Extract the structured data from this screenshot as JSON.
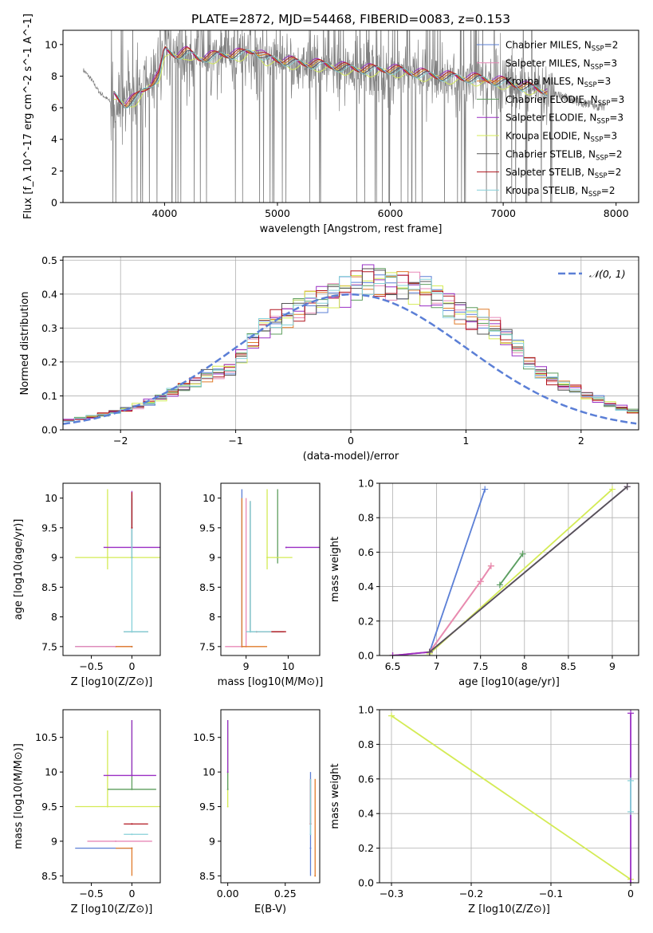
{
  "figure": {
    "title": "PLATE=2872, MJD=54468, FIBERID=0083, z=0.153"
  },
  "series_colors": {
    "Chabrier MILES": "#5b7fd6",
    "Salpeter MILES": "#e889b7",
    "Kroupa MILES": "#e07b2a",
    "Chabrier ELODIE": "#5e9e5e",
    "Salpeter ELODIE": "#9a2fc4",
    "Kroupa ELODIE": "#d4eb55",
    "Chabrier STELIB": "#555555",
    "Salpeter STELIB": "#b0141e",
    "Kroupa STELIB": "#86d0d8",
    "data": "#808080",
    "gaussian": "#5b7fd6"
  },
  "chart_data": [
    {
      "id": "spectrum",
      "type": "line",
      "title": "PLATE=2872, MJD=54468, FIBERID=0083, z=0.153",
      "xlabel": "wavelength [Angstrom, rest frame]",
      "ylabel": "Flux [f_λ 10^-17 erg cm^-2 s^-1 A^-1]",
      "xlim": [
        3100,
        8200
      ],
      "ylim": [
        0,
        10.9
      ],
      "x_ticks": [
        4000,
        5000,
        6000,
        7000,
        8000
      ],
      "y_ticks": [
        0,
        2,
        4,
        6,
        8,
        10
      ],
      "legend_position": "top-right",
      "legend": [
        {
          "label": "Chabrier MILES, N",
          "sub": "SSP",
          "suffix": "=2"
        },
        {
          "label": "Salpeter MILES, N",
          "sub": "SSP",
          "suffix": "=3"
        },
        {
          "label": "Kroupa MILES, N",
          "sub": "SSP",
          "suffix": "=3"
        },
        {
          "label": "Chabrier ELODIE, N",
          "sub": "SSP",
          "suffix": "=3"
        },
        {
          "label": "Salpeter ELODIE, N",
          "sub": "SSP",
          "suffix": "=3"
        },
        {
          "label": "Kroupa ELODIE, N",
          "sub": "SSP",
          "suffix": "=3"
        },
        {
          "label": "Chabrier STELIB, N",
          "sub": "SSP",
          "suffix": "=2"
        },
        {
          "label": "Salpeter STELIB, N",
          "sub": "SSP",
          "suffix": "=2"
        },
        {
          "label": "Kroupa STELIB, N",
          "sub": "SSP",
          "suffix": "=2"
        }
      ],
      "model_continuum": {
        "x": [
          3550,
          3650,
          3750,
          3850,
          3950,
          4000,
          4100,
          4200,
          4300,
          4500,
          4700,
          4800,
          4900,
          5000,
          5200,
          5400,
          5600,
          5800,
          6000,
          6200,
          6400,
          6600,
          6800,
          7000,
          7200,
          7400
        ],
        "y": [
          6.8,
          6.2,
          6.6,
          7.3,
          8.0,
          9.6,
          9.3,
          9.5,
          9.1,
          9.3,
          9.4,
          9.6,
          9.1,
          9.0,
          8.8,
          8.7,
          8.5,
          8.4,
          8.4,
          8.2,
          8.0,
          7.9,
          7.8,
          7.6,
          7.3,
          7.0
        ]
      },
      "data_spectrum": {
        "x": [
          3280,
          3350,
          3420,
          3500,
          3560,
          3620,
          3700,
          3800,
          3900,
          4000,
          4200,
          4500,
          4800,
          5000,
          5300,
          5600,
          5900,
          6200,
          6500,
          6800,
          7100,
          7400,
          7700,
          7900
        ],
        "y": [
          8.4,
          7.8,
          7.0,
          6.5,
          6.0,
          6.3,
          6.6,
          7.2,
          7.9,
          9.5,
          9.3,
          9.2,
          9.5,
          9.0,
          8.7,
          8.5,
          8.3,
          8.1,
          7.9,
          7.7,
          7.5,
          7.0,
          6.3,
          6.0
        ]
      }
    },
    {
      "id": "residuals",
      "type": "line",
      "xlabel": "(data-model)/error",
      "ylabel": "Normed distribution",
      "xlim": [
        -2.5,
        2.5
      ],
      "ylim": [
        0,
        0.51
      ],
      "x_ticks": [
        -2,
        -1,
        0,
        1,
        2
      ],
      "y_ticks": [
        0.0,
        0.1,
        0.2,
        0.3,
        0.4,
        0.5
      ],
      "grid": true,
      "legend_position": "top-right",
      "legend": [
        {
          "label": "𝒩(0, 1)"
        }
      ],
      "bin_width": 0.1,
      "hist_base": [
        0.018,
        0.02,
        0.022,
        0.028,
        0.033,
        0.038,
        0.045,
        0.052,
        0.06,
        0.07,
        0.082,
        0.095,
        0.11,
        0.125,
        0.14,
        0.16,
        0.17,
        0.18,
        0.22,
        0.26,
        0.3,
        0.32,
        0.34,
        0.36,
        0.38,
        0.39,
        0.4,
        0.41,
        0.43,
        0.45,
        0.44,
        0.43,
        0.43,
        0.42,
        0.41,
        0.39,
        0.37,
        0.35,
        0.33,
        0.32,
        0.3,
        0.27,
        0.24,
        0.2,
        0.17,
        0.15,
        0.13,
        0.12,
        0.1,
        0.09,
        0.075,
        0.065,
        0.055,
        0.045,
        0.035,
        0.028,
        0.022
      ]
    },
    {
      "id": "age-vs-Z",
      "type": "scatter",
      "xlabel": "Z [log10(Z/Z⊙)]",
      "ylabel": "age [log10(age/yr)]",
      "xlim": [
        -0.85,
        0.35
      ],
      "ylim": [
        7.35,
        10.25
      ],
      "x_ticks": [
        -0.5,
        0.0
      ],
      "y_ticks": [
        7.5,
        8.0,
        8.5,
        9.0,
        9.5,
        10.0
      ],
      "points": [
        {
          "s": "Chabrier MILES",
          "x": 0.0,
          "y": 7.5,
          "xe": [
            0.7,
            0.0
          ],
          "ye": [
            0,
            0
          ]
        },
        {
          "s": "Salpeter MILES",
          "x": -0.2,
          "y": 7.5,
          "xe": [
            0.5,
            0.2
          ],
          "ye": [
            0,
            0
          ]
        },
        {
          "s": "Kroupa MILES",
          "x": 0.0,
          "y": 7.5,
          "xe": [
            0.2,
            0.0
          ],
          "ye": [
            0,
            0
          ]
        },
        {
          "s": "Kroupa ELODIE",
          "x": -0.3,
          "y": 9.0,
          "xe": [
            0.4,
            0.65
          ],
          "ye": [
            0.2,
            1.15
          ]
        },
        {
          "s": "Salpeter ELODIE",
          "x": 0.0,
          "y": 9.17,
          "xe": [
            0.35,
            0.35
          ],
          "ye": [
            0,
            0.95
          ]
        },
        {
          "s": "Chabrier ELODIE",
          "x": 0.0,
          "y": 9.0,
          "xe": [
            0,
            0
          ],
          "ye": [
            0,
            1.0
          ]
        },
        {
          "s": "Chabrier STELIB",
          "x": 0.0,
          "y": 7.75,
          "xe": [
            0.1,
            0.2
          ],
          "ye": [
            0,
            0
          ]
        },
        {
          "s": "Kroupa STELIB",
          "x": 0.0,
          "y": 7.75,
          "xe": [
            0.1,
            0.2
          ],
          "ye": [
            0,
            2.3
          ]
        },
        {
          "s": "Salpeter STELIB",
          "x": 0.0,
          "y": 9.5,
          "xe": [
            0,
            0
          ],
          "ye": [
            0,
            0.6
          ]
        }
      ]
    },
    {
      "id": "age-vs-mass",
      "type": "scatter",
      "xlabel": "mass [log10(M/M⊙)]",
      "ylabel": "",
      "xlim": [
        8.4,
        10.75
      ],
      "ylim": [
        7.35,
        10.25
      ],
      "x_ticks": [
        9,
        10
      ],
      "y_ticks": [
        7.5,
        8.0,
        8.5,
        9.0,
        9.5,
        10.0
      ],
      "points": [
        {
          "s": "Chabrier MILES",
          "x": 8.9,
          "y": 7.5,
          "xe": [
            0,
            0
          ],
          "ye": [
            0,
            2.65
          ]
        },
        {
          "s": "Salpeter MILES",
          "x": 9.0,
          "y": 7.5,
          "xe": [
            0.5,
            0.0
          ],
          "ye": [
            0,
            2.5
          ]
        },
        {
          "s": "Kroupa MILES",
          "x": 8.9,
          "y": 7.5,
          "xe": [
            0,
            0.6
          ],
          "ye": [
            0,
            2.5
          ]
        },
        {
          "s": "Chabrier ELODIE",
          "x": 9.75,
          "y": 9.0,
          "xe": [
            0,
            0
          ],
          "ye": [
            0.1,
            1.15
          ]
        },
        {
          "s": "Salpeter ELODIE",
          "x": 9.95,
          "y": 9.17,
          "xe": [
            0,
            0.8
          ],
          "ye": [
            0,
            0
          ]
        },
        {
          "s": "Kroupa ELODIE",
          "x": 9.5,
          "y": 9.0,
          "xe": [
            0,
            0.6
          ],
          "ye": [
            0.2,
            1.15
          ]
        },
        {
          "s": "Chabrier STELIB",
          "x": 9.1,
          "y": 7.75,
          "xe": [
            0,
            0.8
          ],
          "ye": [
            0,
            2.2
          ]
        },
        {
          "s": "Salpeter STELIB",
          "x": 9.25,
          "y": 7.75,
          "xe": [
            0,
            0.7
          ],
          "ye": [
            0,
            0
          ]
        },
        {
          "s": "Kroupa STELIB",
          "x": 9.1,
          "y": 7.75,
          "xe": [
            0.1,
            0.5
          ],
          "ye": [
            0,
            2.2
          ]
        }
      ]
    },
    {
      "id": "massweight-vs-age",
      "type": "line",
      "xlabel": "age [log10(age/yr)]",
      "ylabel": "mass weight",
      "xlim": [
        6.35,
        9.3
      ],
      "ylim": [
        0.0,
        1.0
      ],
      "x_ticks": [
        6.5,
        7.0,
        7.5,
        8.0,
        8.5,
        9.0
      ],
      "y_ticks": [
        0.0,
        0.2,
        0.4,
        0.6,
        0.8,
        1.0
      ],
      "grid": true,
      "series": [
        {
          "s": "Chabrier MILES",
          "x": [
            6.92,
            7.55
          ],
          "y": [
            0.02,
            0.965
          ]
        },
        {
          "s": "Kroupa MILES",
          "x": [
            6.5,
            6.92,
            7.5,
            7.62
          ],
          "y": [
            0.0,
            0.02,
            0.43,
            0.52
          ]
        },
        {
          "s": "Salpeter MILES",
          "x": [
            6.5,
            6.92,
            7.5,
            7.62
          ],
          "y": [
            0.0,
            0.02,
            0.43,
            0.52
          ]
        },
        {
          "s": "Kroupa STELIB",
          "x": [
            7.72,
            7.98
          ],
          "y": [
            0.41,
            0.59
          ]
        },
        {
          "s": "Chabrier ELODIE",
          "x": [
            7.72,
            7.98
          ],
          "y": [
            0.41,
            0.59
          ]
        },
        {
          "s": "Kroupa ELODIE",
          "x": [
            6.92,
            9.0
          ],
          "y": [
            0.01,
            0.965
          ]
        },
        {
          "s": "Salpeter ELODIE",
          "x": [
            6.5,
            6.92,
            9.17
          ],
          "y": [
            0.0,
            0.02,
            0.98
          ]
        },
        {
          "s": "Chabrier STELIB",
          "x": [
            6.92,
            9.17
          ],
          "y": [
            0.02,
            0.98
          ]
        }
      ]
    },
    {
      "id": "mass-vs-Z",
      "type": "scatter",
      "xlabel": "Z [log10(Z/Z⊙)]",
      "ylabel": "mass [log10(M/M⊙)]",
      "xlim": [
        -0.85,
        0.35
      ],
      "ylim": [
        8.4,
        10.9
      ],
      "x_ticks": [
        -0.5,
        0.0
      ],
      "y_ticks": [
        8.5,
        9.0,
        9.5,
        10.0,
        10.5
      ],
      "points": [
        {
          "s": "Chabrier MILES",
          "x": 0.0,
          "y": 8.9,
          "xe": [
            0.7,
            0.0
          ],
          "ye": [
            0,
            0
          ]
        },
        {
          "s": "Kroupa MILES",
          "x": 0.0,
          "y": 8.9,
          "xe": [
            0.2,
            0.0
          ],
          "ye": [
            0.4,
            0
          ]
        },
        {
          "s": "Salpeter MILES",
          "x": -0.2,
          "y": 9.0,
          "xe": [
            0.35,
            0.45
          ],
          "ye": [
            0,
            0
          ]
        },
        {
          "s": "Kroupa STELIB",
          "x": 0.0,
          "y": 9.1,
          "xe": [
            0.1,
            0.2
          ],
          "ye": [
            0,
            0
          ]
        },
        {
          "s": "Salpeter STELIB",
          "x": 0.0,
          "y": 9.25,
          "xe": [
            0.1,
            0.2
          ],
          "ye": [
            0,
            0
          ]
        },
        {
          "s": "Kroupa ELODIE",
          "x": -0.3,
          "y": 9.5,
          "xe": [
            0.4,
            0.65
          ],
          "ye": [
            0,
            1.1
          ]
        },
        {
          "s": "Chabrier ELODIE",
          "x": 0.0,
          "y": 9.75,
          "xe": [
            0.3,
            0.3
          ],
          "ye": [
            0,
            1.0
          ]
        },
        {
          "s": "Salpeter ELODIE",
          "x": 0.0,
          "y": 9.95,
          "xe": [
            0.35,
            0.3
          ],
          "ye": [
            0,
            0.8
          ]
        }
      ]
    },
    {
      "id": "mass-vs-ebv",
      "type": "scatter",
      "xlabel": "E(B-V)",
      "ylabel": "",
      "xlim": [
        -0.03,
        0.4
      ],
      "ylim": [
        8.4,
        10.9
      ],
      "x_ticks": [
        0.0,
        0.25
      ],
      "x_tick_labels": [
        "0.00",
        "0.25"
      ],
      "y_ticks": [
        8.5,
        9.0,
        9.5,
        10.0,
        10.5
      ],
      "points": [
        {
          "s": "Kroupa ELODIE",
          "x": 0.0,
          "y": 9.5,
          "xe": [
            0,
            0
          ],
          "ye": [
            0,
            1.1
          ]
        },
        {
          "s": "Chabrier ELODIE",
          "x": 0.0,
          "y": 9.75,
          "xe": [
            0,
            0
          ],
          "ye": [
            0,
            1.0
          ]
        },
        {
          "s": "Salpeter ELODIE",
          "x": 0.0,
          "y": 10.0,
          "xe": [
            0,
            0
          ],
          "ye": [
            0,
            0.75
          ]
        },
        {
          "s": "Chabrier MILES",
          "x": 0.36,
          "y": 8.9,
          "xe": [
            0,
            0
          ],
          "ye": [
            0.4,
            1.1
          ]
        },
        {
          "s": "Kroupa MILES",
          "x": 0.38,
          "y": 8.5,
          "xe": [
            0,
            0
          ],
          "ye": [
            0,
            1.4
          ]
        },
        {
          "s": "Salpeter STELIB",
          "x": 0.36,
          "y": 9.25,
          "xe": [
            0,
            0
          ],
          "ye": [
            0,
            0.65
          ]
        },
        {
          "s": "Kroupa STELIB",
          "x": 0.36,
          "y": 9.1,
          "xe": [
            0,
            0
          ],
          "ye": [
            0,
            0.8
          ]
        }
      ]
    },
    {
      "id": "massweight-vs-Z",
      "type": "line",
      "xlabel": "Z [log10(Z/Z⊙)]",
      "ylabel": "mass weight",
      "xlim": [
        -0.315,
        0.01
      ],
      "ylim": [
        0.0,
        1.0
      ],
      "x_ticks": [
        -0.3,
        -0.2,
        -0.1,
        0.0
      ],
      "y_ticks": [
        0.0,
        0.2,
        0.4,
        0.6,
        0.8,
        1.0
      ],
      "grid": true,
      "series": [
        {
          "s": "Kroupa ELODIE",
          "x": [
            -0.3,
            0.0
          ],
          "y": [
            0.965,
            0.02
          ]
        },
        {
          "s": "Salpeter ELODIE",
          "x": [
            0.0,
            0.0
          ],
          "y": [
            0.0,
            0.98
          ]
        },
        {
          "s": "Kroupa STELIB",
          "x": [
            0.0,
            0.0
          ],
          "y": [
            0.41,
            0.59
          ]
        }
      ]
    }
  ]
}
